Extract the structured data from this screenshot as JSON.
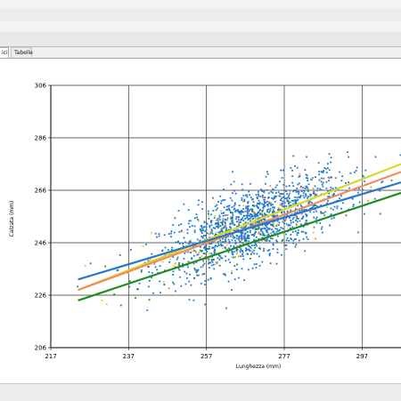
{
  "tabs": [
    {
      "label": "ici",
      "active": true
    },
    {
      "label": "Tabelle",
      "active": false
    }
  ],
  "chart_data": {
    "type": "scatter",
    "title": "",
    "xlabel": "Lunghezza (mm)",
    "ylabel": "Calzata (mm)",
    "xlim": [
      217,
      307
    ],
    "ylim": [
      206,
      306
    ],
    "x_ticks": [
      217,
      237,
      257,
      277,
      297
    ],
    "y_ticks": [
      206,
      226,
      246,
      266,
      286,
      306
    ],
    "grid": true,
    "point_clusters": [
      {
        "color": "#1f78d1",
        "center": [
          269,
          253
        ],
        "spread": [
          12,
          10
        ],
        "count": 1400
      },
      {
        "color": "#d8cf2a",
        "center": [
          262,
          249
        ],
        "spread": [
          12,
          9
        ],
        "count": 80
      },
      {
        "color": "#ff7f3f",
        "center": [
          265,
          250
        ],
        "spread": [
          12,
          9
        ],
        "count": 60
      },
      {
        "color": "#1e8c1e",
        "center": [
          262,
          244
        ],
        "spread": [
          12,
          9
        ],
        "count": 60
      }
    ],
    "lines": [
      {
        "color": "#d8d82a",
        "x": [
          224,
          307
        ],
        "y": [
          228,
          276
        ]
      },
      {
        "color": "#f08c5a",
        "x": [
          224,
          307
        ],
        "y": [
          228,
          273
        ]
      },
      {
        "color": "#2878c8",
        "x": [
          224,
          307
        ],
        "y": [
          232,
          269
        ]
      },
      {
        "color": "#1e8c1e",
        "x": [
          224,
          307
        ],
        "y": [
          224,
          265
        ]
      }
    ]
  }
}
